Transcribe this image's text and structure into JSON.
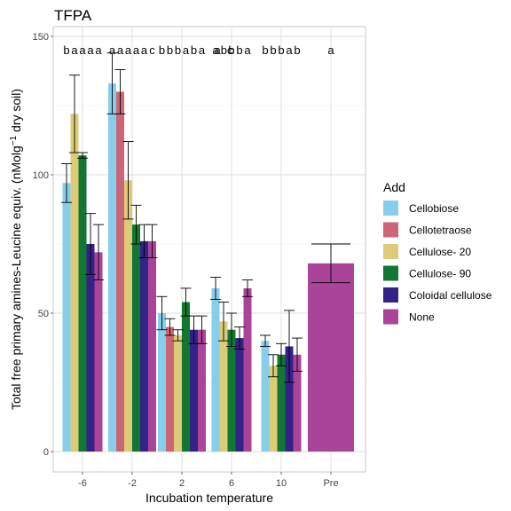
{
  "chart_data": {
    "type": "bar",
    "title": "TFPA",
    "xlabel": "Incubation temperature",
    "ylabel": "Total free primary amines-Leucine equiv. (nMolg⁻¹ dry soil)",
    "ylabel_parts": [
      "Total free primary amines-Leucine equiv. (nMolg",
      "−1",
      " dry soil)"
    ],
    "ylim": [
      0,
      150
    ],
    "yticks": [
      0,
      50,
      100,
      150
    ],
    "grid": true,
    "legend_title": "Add",
    "legend_position": "right",
    "categories": [
      "-6",
      "-2",
      "2",
      "6",
      "10",
      "Pre"
    ],
    "series": [
      {
        "name": "Cellobiose",
        "color": "#87CEEB",
        "values": [
          97,
          133,
          50,
          59,
          40,
          null
        ],
        "errors": [
          7,
          11,
          6,
          4,
          2,
          null
        ],
        "letters": [
          "b",
          "a",
          "b",
          "a",
          "b",
          null
        ]
      },
      {
        "name": "Cellotetraose",
        "color": "#CC6677",
        "values": [
          null,
          130,
          45,
          null,
          null,
          null
        ],
        "errors": [
          null,
          8,
          3,
          null,
          null,
          null
        ],
        "letters": [
          null,
          "a",
          "b",
          null,
          null,
          null
        ]
      },
      {
        "name": "Cellulose- 20",
        "color": "#DDCC77",
        "values": [
          122,
          98,
          42,
          47,
          31,
          null
        ],
        "errors": [
          14,
          14,
          2,
          7,
          4,
          null
        ],
        "letters": [
          "a",
          "a",
          "b",
          "abc",
          "b",
          null
        ]
      },
      {
        "name": "Cellulose- 90",
        "color": "#117733",
        "values": [
          107,
          82,
          54,
          44,
          35,
          null
        ],
        "errors": [
          1,
          7,
          5,
          6,
          4,
          null
        ],
        "letters": [
          "a",
          "a",
          "a",
          "b",
          "b",
          null
        ]
      },
      {
        "name": "Coloidal cellulose",
        "color": "#332288",
        "values": [
          75,
          76,
          44,
          41,
          38,
          null
        ],
        "errors": [
          11,
          6,
          5,
          4,
          13,
          null
        ],
        "letters": [
          "a",
          "a",
          "b",
          "b",
          "a",
          null
        ]
      },
      {
        "name": "None",
        "color": "#AA4499",
        "values": [
          72,
          76,
          44,
          59,
          35,
          68
        ],
        "errors": [
          10,
          6,
          5,
          3,
          6,
          7
        ],
        "letters": [
          "a",
          "c",
          "a",
          "a",
          "b",
          "a"
        ]
      }
    ]
  }
}
